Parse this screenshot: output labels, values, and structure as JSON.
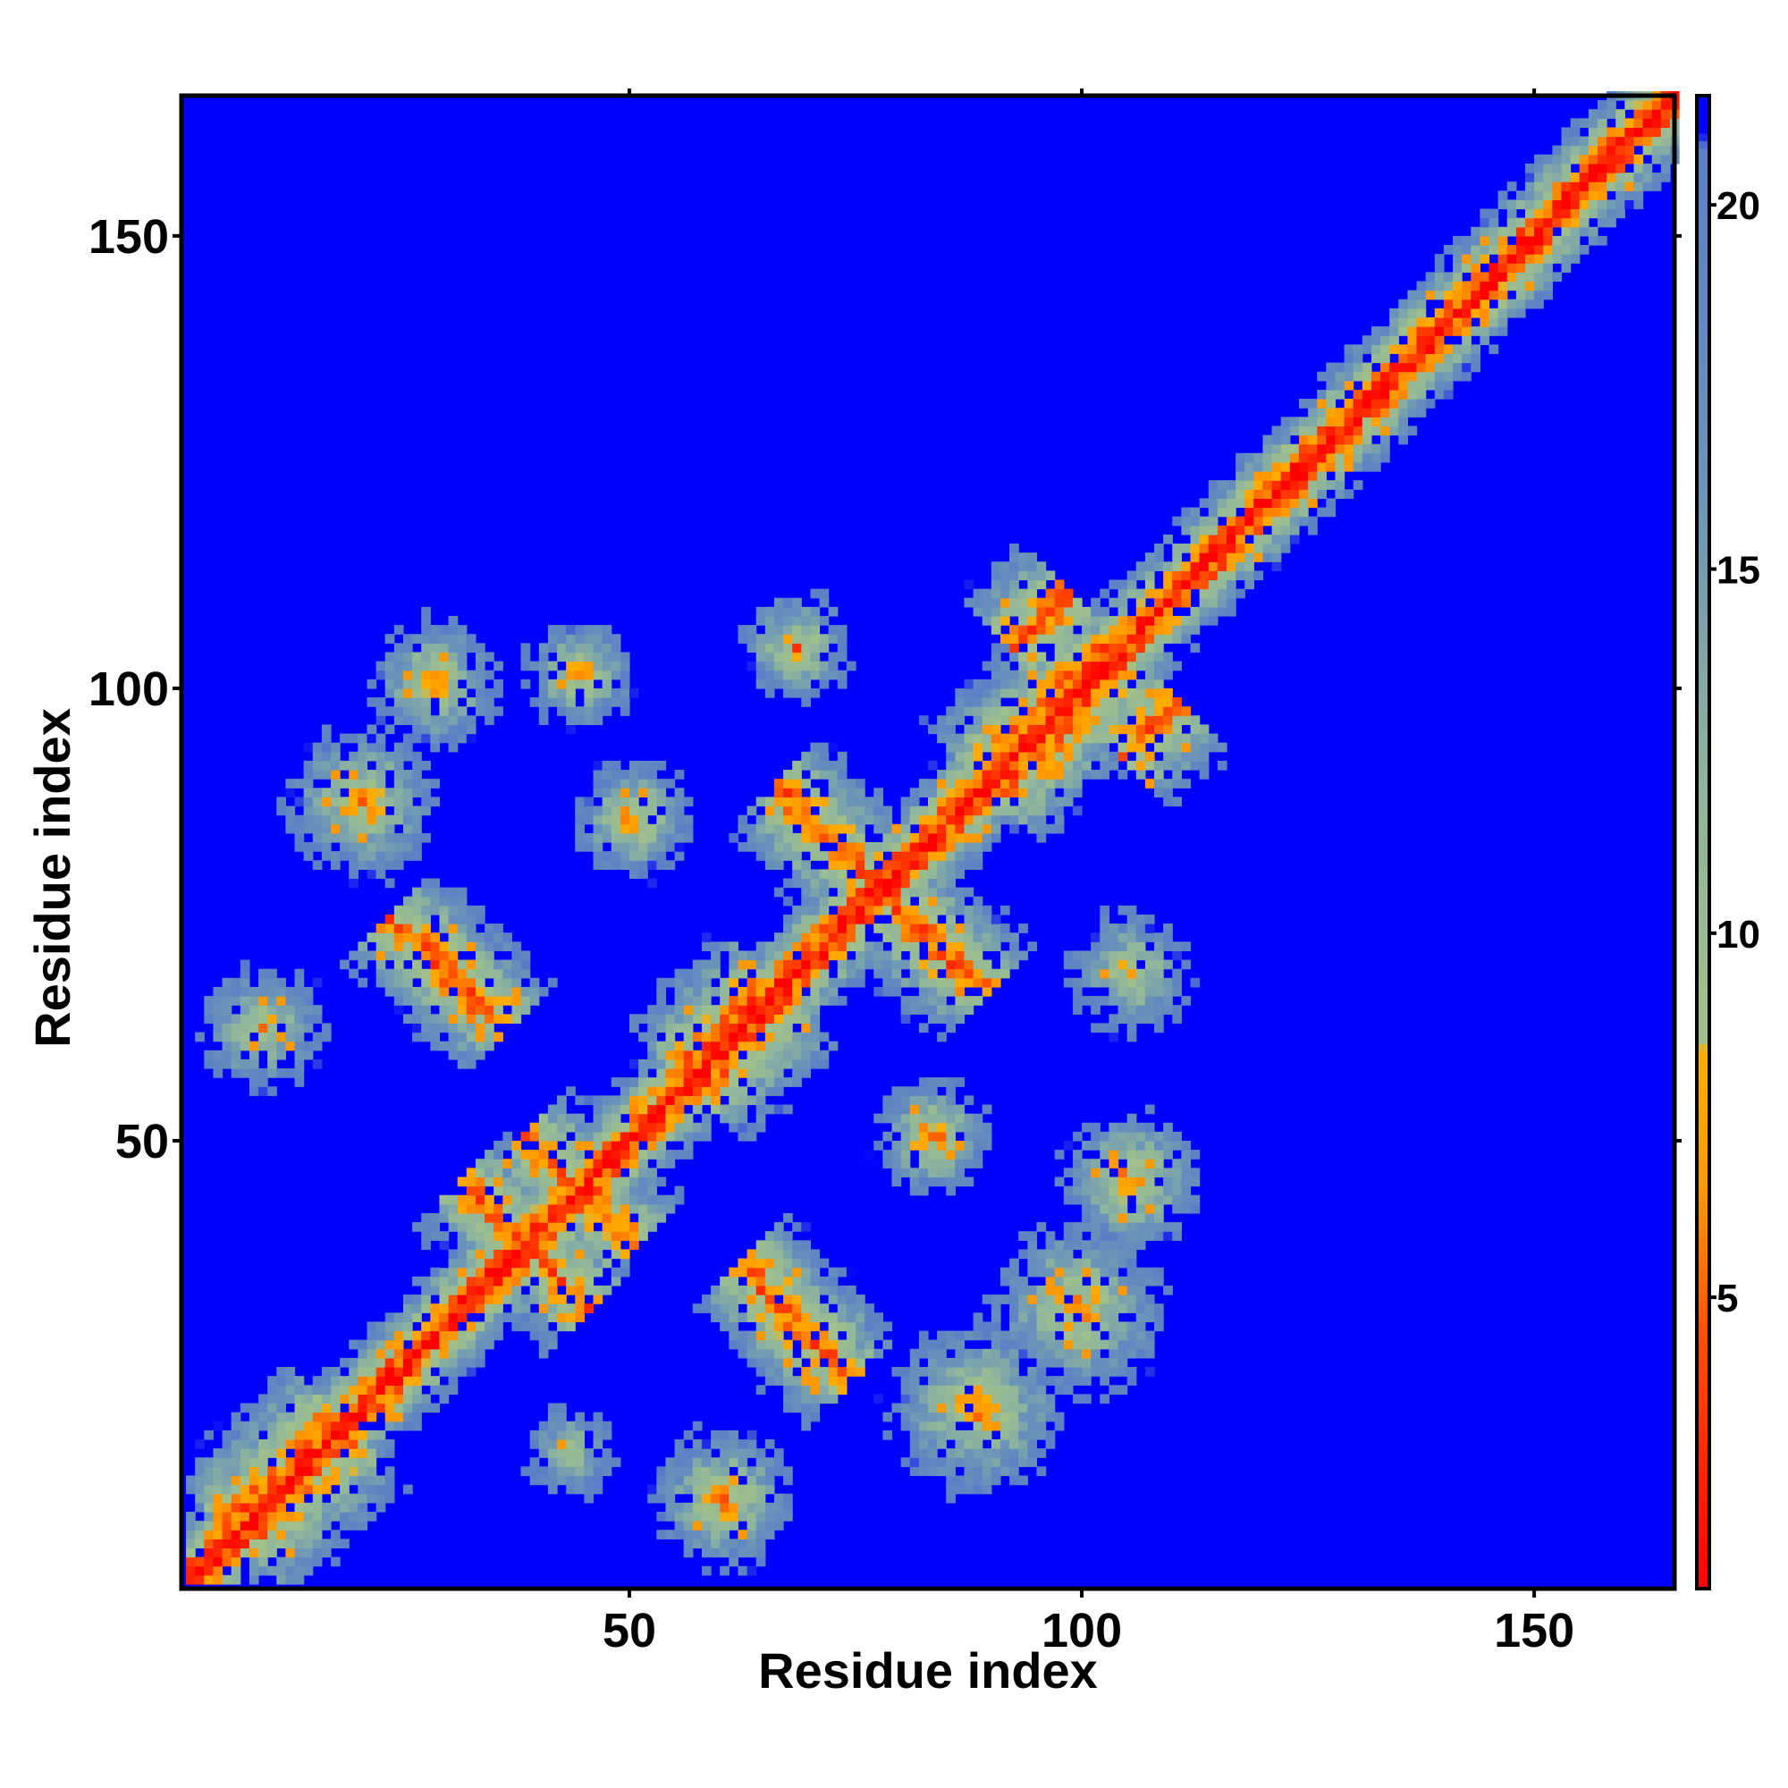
{
  "chart_data": {
    "type": "heatmap",
    "title": "",
    "xlabel": "Residue index",
    "ylabel": "Residue index",
    "n_residues": 165,
    "xlim": [
      1,
      165
    ],
    "ylim": [
      1,
      165
    ],
    "x_ticks": [
      50,
      100,
      150
    ],
    "y_ticks": [
      50,
      100,
      150
    ],
    "grid": false,
    "colorbar": {
      "placement": "right",
      "range": [
        1,
        21.5
      ],
      "ticks": [
        5,
        10,
        15,
        20
      ],
      "stops": [
        {
          "value": 1,
          "color": "#ff0000"
        },
        {
          "value": 4.5,
          "color": "#ff5000"
        },
        {
          "value": 6.5,
          "color": "#ff9900"
        },
        {
          "value": 8.4,
          "color": "#ffad00"
        },
        {
          "value": 8.5,
          "color": "#a2c08a"
        },
        {
          "value": 12,
          "color": "#8fb59c"
        },
        {
          "value": 16,
          "color": "#6b95b8"
        },
        {
          "value": 20.8,
          "color": "#5a7fc6"
        },
        {
          "value": 21,
          "color": "#0000ff"
        },
        {
          "value": 21.5,
          "color": "#0000ff"
        }
      ]
    },
    "value_meaning": "inter-residue distance; values >= 21 shown as background blue",
    "features": {
      "diagonal_halfwidth": 7,
      "contact_blobs": [
        {
          "i": 9,
          "j": 62,
          "peak": 7,
          "radius": 6
        },
        {
          "i": 20,
          "j": 87,
          "peak": 6,
          "radius": 7
        },
        {
          "i": 28,
          "j": 100,
          "peak": 6,
          "radius": 6
        },
        {
          "i": 44,
          "j": 101,
          "peak": 6,
          "radius": 5
        },
        {
          "i": 68,
          "j": 104,
          "peak": 6,
          "radius": 5
        },
        {
          "i": 105,
          "j": 45,
          "peak": 5,
          "radius": 6
        },
        {
          "i": 105,
          "j": 68,
          "peak": 7,
          "radius": 6
        },
        {
          "i": 99,
          "j": 31,
          "peak": 6,
          "radius": 8
        },
        {
          "i": 88,
          "j": 20,
          "peak": 6,
          "radius": 8
        },
        {
          "i": 60,
          "j": 10,
          "peak": 5,
          "radius": 6
        },
        {
          "i": 50,
          "j": 85,
          "peak": 5,
          "radius": 5
        },
        {
          "i": 83,
          "j": 50,
          "peak": 5,
          "radius": 5
        },
        {
          "i": 43,
          "j": 15,
          "peak": 9,
          "radius": 5
        }
      ],
      "antiparallel_strands": [
        {
          "center_i": 38,
          "center_j": 38,
          "length": 7
        },
        {
          "center_i": 44,
          "center_j": 44,
          "length": 6
        },
        {
          "center_i": 77,
          "center_j": 77,
          "length": 10
        },
        {
          "center_i": 31,
          "center_j": 67,
          "length": 5
        },
        {
          "center_i": 69,
          "center_j": 28,
          "length": 5
        },
        {
          "center_i": 84,
          "center_j": 71,
          "length": 5
        }
      ],
      "parallel_strands": [
        {
          "i_start": 55,
          "j_start": 57,
          "length": 10
        },
        {
          "i_start": 88,
          "j_start": 90,
          "length": 14
        },
        {
          "i_start": 5,
          "j_start": 7,
          "length": 12
        },
        {
          "i_start": 92,
          "j_start": 104,
          "length": 6
        }
      ]
    }
  }
}
